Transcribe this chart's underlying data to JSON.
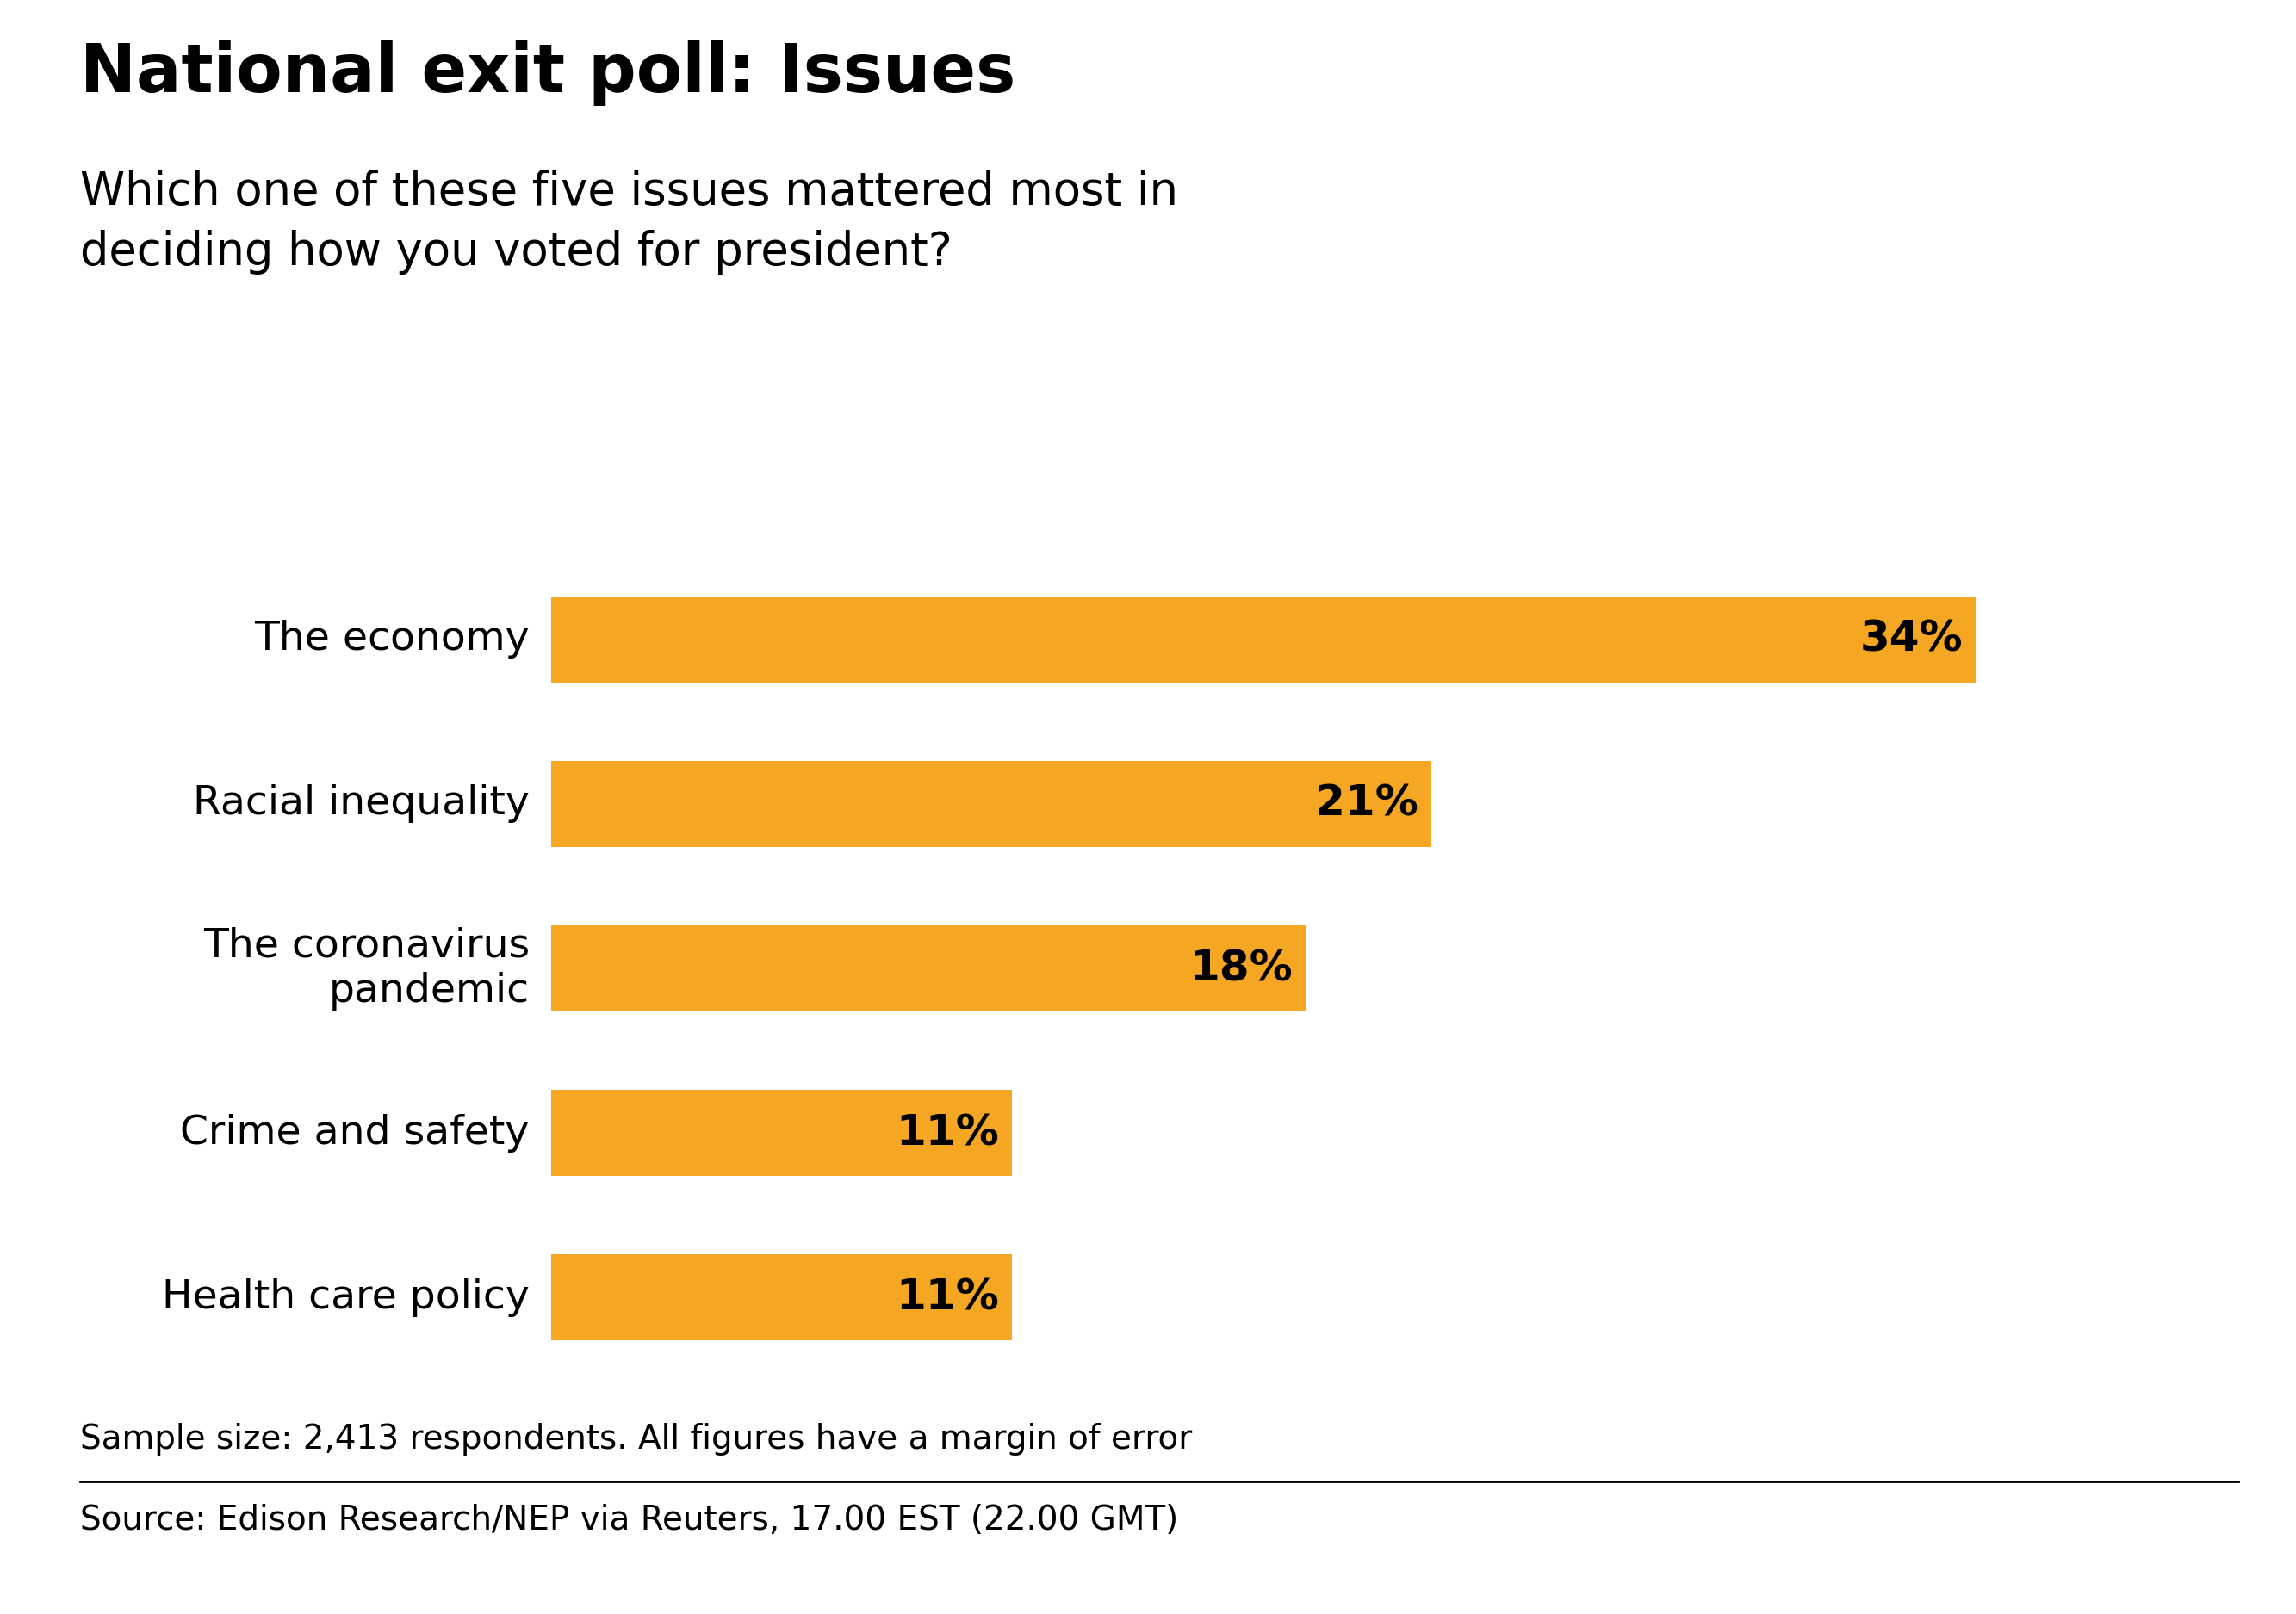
{
  "title": "National exit poll: Issues",
  "subtitle": "Which one of these five issues mattered most in\ndeciding how you voted for president?",
  "categories": [
    "The economy",
    "Racial inequality",
    "The coronavirus\npandemic",
    "Crime and safety",
    "Health care policy"
  ],
  "values": [
    34,
    21,
    18,
    11,
    11
  ],
  "bar_color": "#F5A623",
  "label_color": "#000000",
  "background_color": "#FFFFFF",
  "title_fontsize": 56,
  "subtitle_fontsize": 38,
  "bar_label_fontsize": 36,
  "ytick_fontsize": 34,
  "footnote": "Sample size: 2,413 respondents. All figures have a margin of error",
  "source": "Source: Edison Research/NEP via Reuters, 17.00 EST (22.00 GMT)",
  "footnote_fontsize": 28,
  "source_fontsize": 28,
  "xlim": [
    0,
    40
  ]
}
